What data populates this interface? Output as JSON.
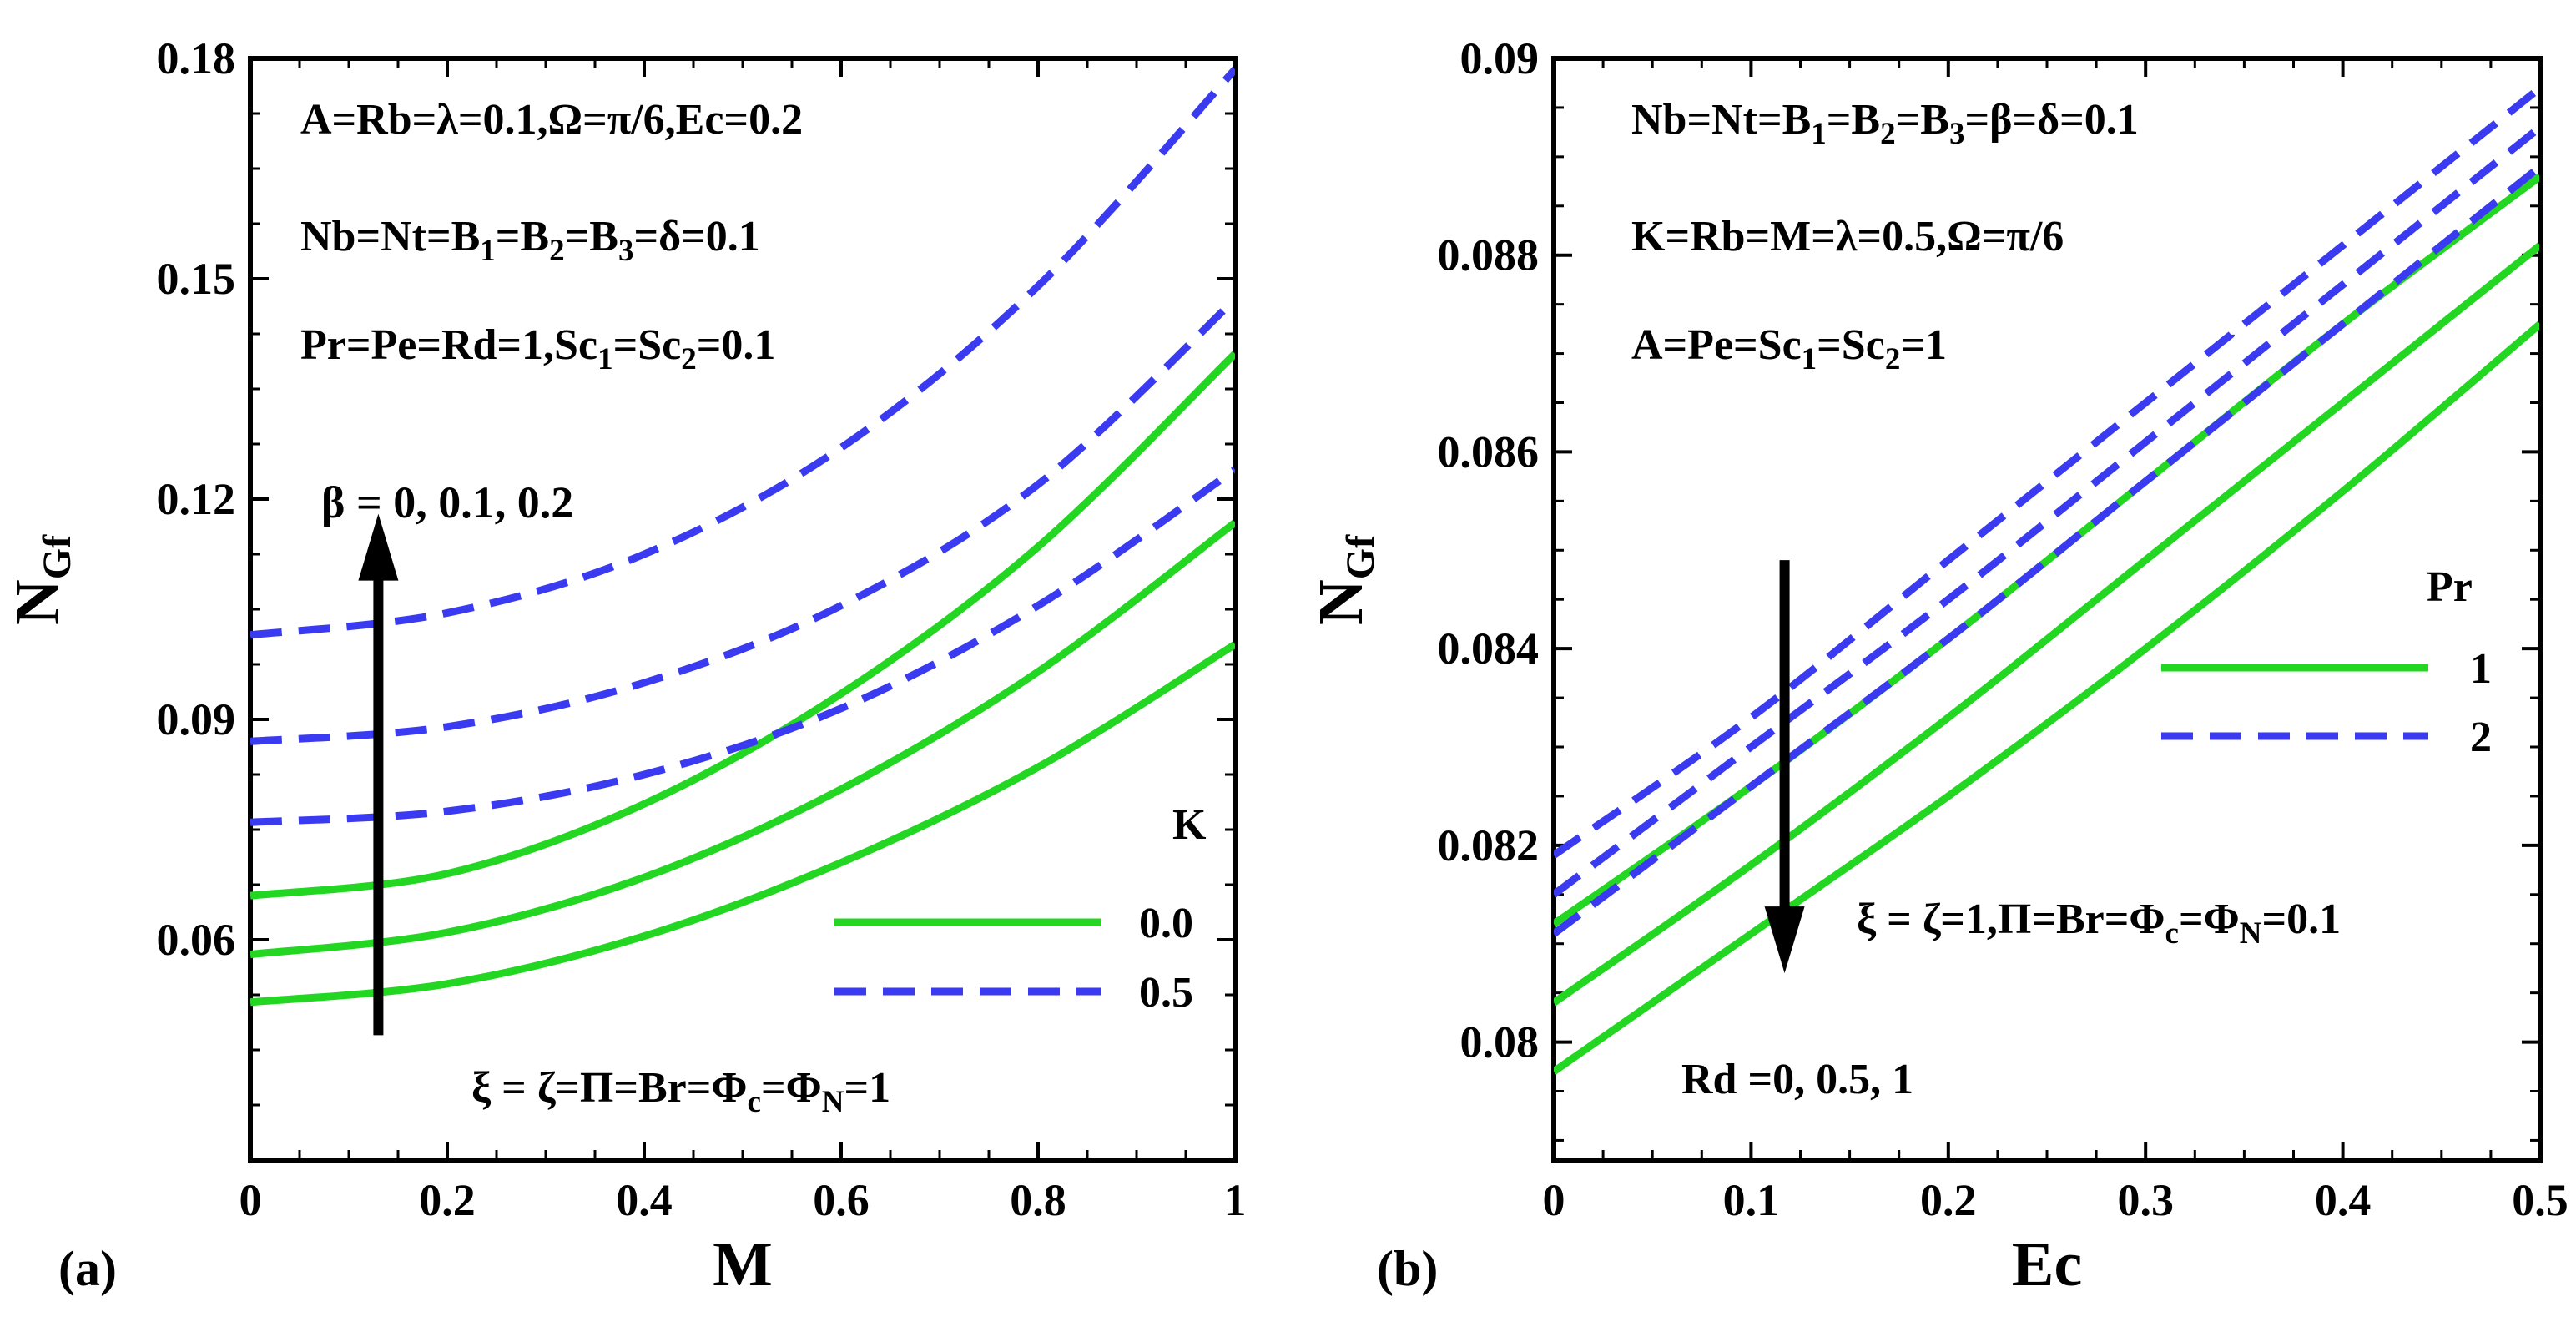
{
  "colors": {
    "green": "#22d622",
    "blue": "#3a3af0",
    "axis": "#000000"
  },
  "chart_data": [
    {
      "panel_label": "(a)",
      "type": "line",
      "xlabel": "M",
      "ylabel": "N",
      "ylabel_sub": "Gf",
      "xlim": [
        0,
        1
      ],
      "ylim": [
        0.03,
        0.18
      ],
      "xticks": [
        "0",
        "0.2",
        "0.4",
        "0.6",
        "0.8",
        "1"
      ],
      "xtick_values": [
        0,
        0.2,
        0.4,
        0.6,
        0.8,
        1
      ],
      "yticks": [
        "0.06",
        "0.09",
        "0.12",
        "0.15",
        "0.18"
      ],
      "ytick_values": [
        0.06,
        0.09,
        0.12,
        0.15,
        0.18
      ],
      "annotations": [
        {
          "segments": [
            [
              "A=Rb=λ=0.1,Ω=π/6,Ec=0.2",
              ""
            ]
          ]
        },
        {
          "segments": [
            [
              "Nb=Nt=B",
              ""
            ],
            [
              "1",
              "sub"
            ],
            [
              "=B",
              ""
            ],
            [
              "2",
              "sub"
            ],
            [
              "=B",
              ""
            ],
            [
              "3",
              "sub"
            ],
            [
              "=δ=0.1",
              ""
            ]
          ]
        },
        {
          "segments": [
            [
              "Pr=Pe=Rd=1,Sc",
              ""
            ],
            [
              "1",
              "sub"
            ],
            [
              "=Sc",
              ""
            ],
            [
              "2",
              "sub"
            ],
            [
              "=0.1",
              ""
            ]
          ]
        },
        {
          "segments": [
            [
              "β = 0, 0.1, 0.2",
              ""
            ]
          ]
        },
        {
          "segments": [
            [
              "ξ = ζ=Π=Br=Φ",
              ""
            ],
            [
              "c",
              "sub"
            ],
            [
              "=Φ",
              ""
            ],
            [
              "N",
              "sub"
            ],
            [
              "=1",
              ""
            ]
          ]
        }
      ],
      "legend": {
        "title": "K",
        "entries": [
          "0.0",
          "0.5"
        ],
        "placement": "bottom-right"
      },
      "arrow": {
        "direction": "up",
        "x": 0.13,
        "y_from": 0.047,
        "y_to": 0.118
      },
      "series": [
        {
          "name": "K=0.0, β=0",
          "style": "solid",
          "color": "green",
          "x": [
            0,
            0.2,
            0.4,
            0.6,
            0.8,
            1
          ],
          "y": [
            0.0515,
            0.054,
            0.0605,
            0.0705,
            0.0835,
            0.1002
          ]
        },
        {
          "name": "K=0.0, β=0.1",
          "style": "solid",
          "color": "green",
          "x": [
            0,
            0.2,
            0.4,
            0.6,
            0.8,
            1
          ],
          "y": [
            0.058,
            0.061,
            0.0685,
            0.0805,
            0.0965,
            0.1168
          ]
        },
        {
          "name": "K=0.0, β=0.2",
          "style": "solid",
          "color": "green",
          "x": [
            0,
            0.2,
            0.4,
            0.6,
            0.8,
            1
          ],
          "y": [
            0.066,
            0.069,
            0.0785,
            0.0935,
            0.1135,
            0.1398
          ]
        },
        {
          "name": "K=0.5, β=0",
          "style": "dashed",
          "color": "blue",
          "x": [
            0,
            0.2,
            0.4,
            0.6,
            0.8,
            1
          ],
          "y": [
            0.076,
            0.0775,
            0.0825,
            0.0915,
            0.1055,
            0.124
          ]
        },
        {
          "name": "K=0.5, β=0.1",
          "style": "dashed",
          "color": "blue",
          "x": [
            0,
            0.2,
            0.4,
            0.6,
            0.8,
            1
          ],
          "y": [
            0.087,
            0.089,
            0.095,
            0.1055,
            0.122,
            0.1472
          ]
        },
        {
          "name": "K=0.5, β=0.2",
          "style": "dashed",
          "color": "blue",
          "x": [
            0,
            0.2,
            0.4,
            0.6,
            0.8,
            1
          ],
          "y": [
            0.1015,
            0.1045,
            0.1125,
            0.127,
            0.149,
            0.1785
          ]
        }
      ]
    },
    {
      "panel_label": "(b)",
      "type": "line",
      "xlabel": "Ec",
      "ylabel": "N",
      "ylabel_sub": "Gf",
      "xlim": [
        0,
        0.5
      ],
      "ylim": [
        0.0788,
        0.09
      ],
      "xticks": [
        "0",
        "0.1",
        "0.2",
        "0.3",
        "0.4",
        "0.5"
      ],
      "xtick_values": [
        0,
        0.1,
        0.2,
        0.3,
        0.4,
        0.5
      ],
      "yticks": [
        "0.08",
        "0.082",
        "0.084",
        "0.086",
        "0.088",
        "0.09"
      ],
      "ytick_values": [
        0.08,
        0.082,
        0.084,
        0.086,
        0.088,
        0.09
      ],
      "annotations": [
        {
          "segments": [
            [
              "Nb=Nt=B",
              ""
            ],
            [
              "1",
              "sub"
            ],
            [
              "=B",
              ""
            ],
            [
              "2",
              "sub"
            ],
            [
              "=B",
              ""
            ],
            [
              "3",
              "sub"
            ],
            [
              "=β=δ=0.1",
              ""
            ]
          ]
        },
        {
          "segments": [
            [
              "K=Rb=M=λ=0.5,Ω=π/6",
              ""
            ]
          ]
        },
        {
          "segments": [
            [
              "A=Pe=Sc",
              ""
            ],
            [
              "1",
              "sub"
            ],
            [
              "=Sc",
              ""
            ],
            [
              "2",
              "sub"
            ],
            [
              "=1",
              ""
            ]
          ]
        },
        {
          "segments": [
            [
              "ξ = ζ=1,Π=Br=Φ",
              ""
            ],
            [
              "c",
              "sub"
            ],
            [
              "=Φ",
              ""
            ],
            [
              "N",
              "sub"
            ],
            [
              "=0.1",
              ""
            ]
          ]
        },
        {
          "segments": [
            [
              "Rd =0, 0.5, 1",
              ""
            ]
          ]
        }
      ],
      "legend": {
        "title": "Pr",
        "entries": [
          "1",
          "2"
        ],
        "placement": "right"
      },
      "arrow": {
        "direction": "down",
        "x": 0.117,
        "y_from": 0.0849,
        "y_to": 0.0807
      },
      "series": [
        {
          "name": "Pr=1, Rd=0",
          "style": "solid",
          "color": "green",
          "x": [
            0,
            0.1,
            0.2,
            0.3,
            0.4,
            0.5
          ],
          "y": [
            0.0812,
            0.0826,
            0.0841,
            0.0857,
            0.0873,
            0.0888
          ]
        },
        {
          "name": "Pr=1, Rd=0.5",
          "style": "solid",
          "color": "green",
          "x": [
            0,
            0.1,
            0.2,
            0.3,
            0.4,
            0.5
          ],
          "y": [
            0.0804,
            0.0818,
            0.0833,
            0.0849,
            0.0865,
            0.0881
          ]
        },
        {
          "name": "Pr=1, Rd=1",
          "style": "solid",
          "color": "green",
          "x": [
            0,
            0.1,
            0.2,
            0.3,
            0.4,
            0.5
          ],
          "y": [
            0.0797,
            0.0811,
            0.0825,
            0.084,
            0.0856,
            0.0873
          ]
        },
        {
          "name": "Pr=2, Rd=0",
          "style": "dashed",
          "color": "blue",
          "x": [
            0,
            0.1,
            0.2,
            0.3,
            0.4,
            0.5
          ],
          "y": [
            0.0819,
            0.0833,
            0.0849,
            0.0865,
            0.0881,
            0.0897
          ]
        },
        {
          "name": "Pr=2, Rd=0.5",
          "style": "dashed",
          "color": "blue",
          "x": [
            0,
            0.1,
            0.2,
            0.3,
            0.4,
            0.5
          ],
          "y": [
            0.0815,
            0.083,
            0.0845,
            0.0861,
            0.0877,
            0.0893
          ]
        },
        {
          "name": "Pr=2, Rd=1",
          "style": "dashed",
          "color": "blue",
          "x": [
            0,
            0.1,
            0.2,
            0.3,
            0.4,
            0.5
          ],
          "y": [
            0.0811,
            0.0826,
            0.0841,
            0.0857,
            0.0873,
            0.0889
          ]
        }
      ]
    }
  ]
}
